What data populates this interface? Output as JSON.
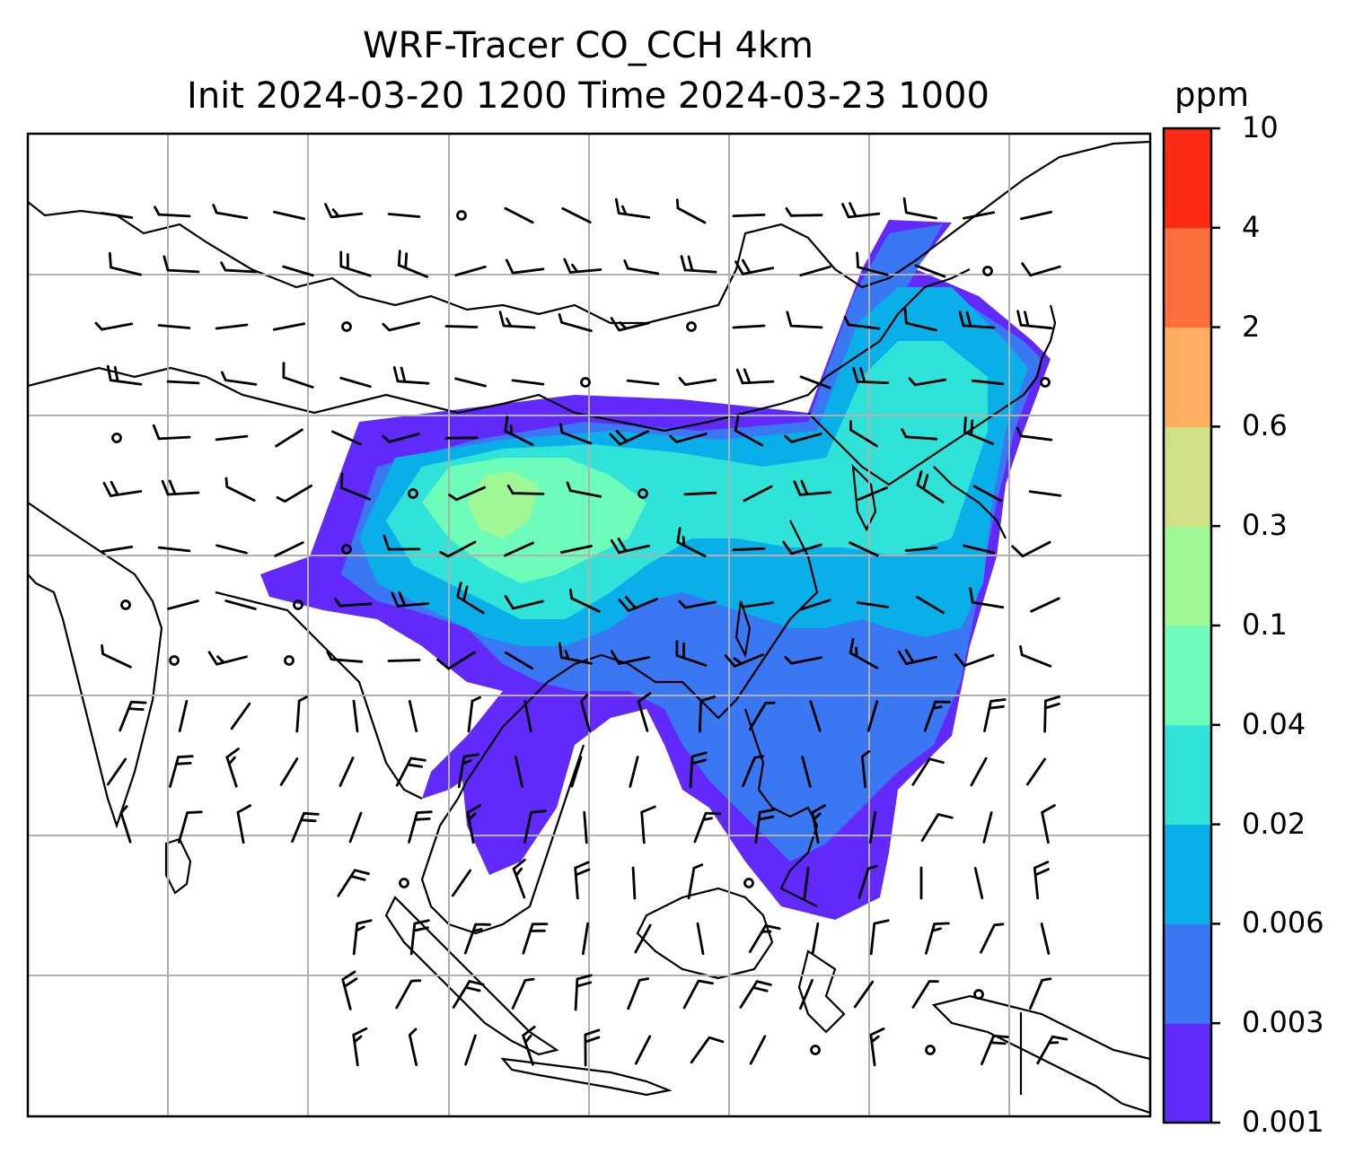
{
  "title": {
    "line1": "WRF-Tracer CO_CCH 4km",
    "line2": "Init 2024-03-20 1200 Time 2024-03-23 1000"
  },
  "colorbar": {
    "unit": "ppm",
    "levels": [
      "0.001",
      "0.003",
      "0.006",
      "0.02",
      "0.04",
      "0.1",
      "0.3",
      "0.6",
      "2",
      "4",
      "10"
    ],
    "colors": [
      "#6229fb",
      "#3a77f2",
      "#0aaee9",
      "#2fe3d8",
      "#6dfcba",
      "#9ff893",
      "#d0e185",
      "#fdae61",
      "#fe6f3f",
      "#fe2a16"
    ]
  },
  "map": {
    "gridlines": true,
    "ocean_color": "#ffffff",
    "coastline_color": "#000000",
    "grid_color": "#b0b0b0"
  }
}
